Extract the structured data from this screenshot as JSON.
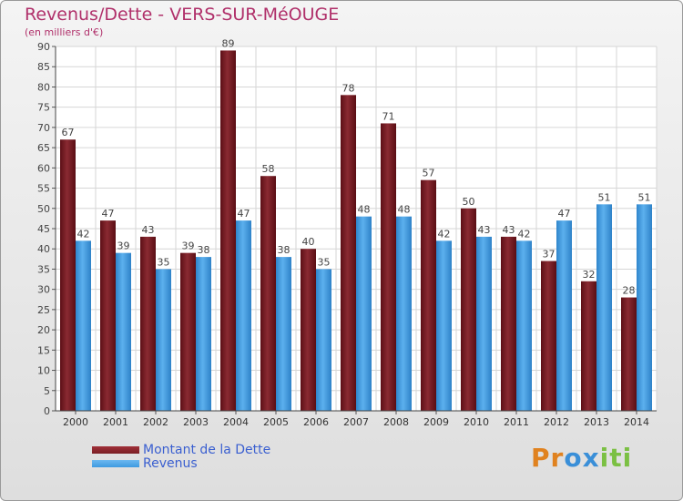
{
  "header": {
    "title": "Revenus/Dette - VERS-SUR-MéOUGE",
    "subtitle": "(en milliers d'€)"
  },
  "colors": {
    "title": "#b0306a",
    "dette": "#7a1e24",
    "revenus": "#3e9ae0",
    "legend_text": "#3a5fd0"
  },
  "legend": {
    "items": [
      {
        "label": "Montant de la Dette",
        "color": "#7a1e24"
      },
      {
        "label": "Revenus",
        "color": "#3e9ae0"
      }
    ]
  },
  "logo": {
    "text": "Proxiti",
    "letters": [
      "P",
      "r",
      "o",
      "x",
      "i",
      "t",
      "i"
    ],
    "letter_colors": [
      "#e0821f",
      "#e0821f",
      "#3a8fd8",
      "#3a8fd8",
      "#7bc043",
      "#7bc043",
      "#7bc043"
    ]
  },
  "chart_data": {
    "type": "bar",
    "title": "Revenus/Dette - VERS-SUR-MéOUGE",
    "ylabel": "(en milliers d'€)",
    "xlabel": "",
    "ylim": [
      0,
      90
    ],
    "yticks": [
      0,
      5,
      10,
      15,
      20,
      25,
      30,
      35,
      40,
      45,
      50,
      55,
      60,
      65,
      70,
      75,
      80,
      85,
      90
    ],
    "grid": true,
    "legend_position": "bottom-left",
    "categories": [
      "2000",
      "2001",
      "2002",
      "2003",
      "2004",
      "2005",
      "2006",
      "2007",
      "2008",
      "2009",
      "2010",
      "2011",
      "2012",
      "2013",
      "2014"
    ],
    "series": [
      {
        "name": "Montant de la Dette",
        "values": [
          67,
          47,
          43,
          39,
          89,
          58,
          40,
          78,
          71,
          57,
          50,
          43,
          37,
          32,
          28
        ]
      },
      {
        "name": "Revenus",
        "values": [
          42,
          39,
          35,
          38,
          47,
          38,
          35,
          48,
          48,
          42,
          43,
          42,
          47,
          51,
          51
        ]
      }
    ]
  }
}
